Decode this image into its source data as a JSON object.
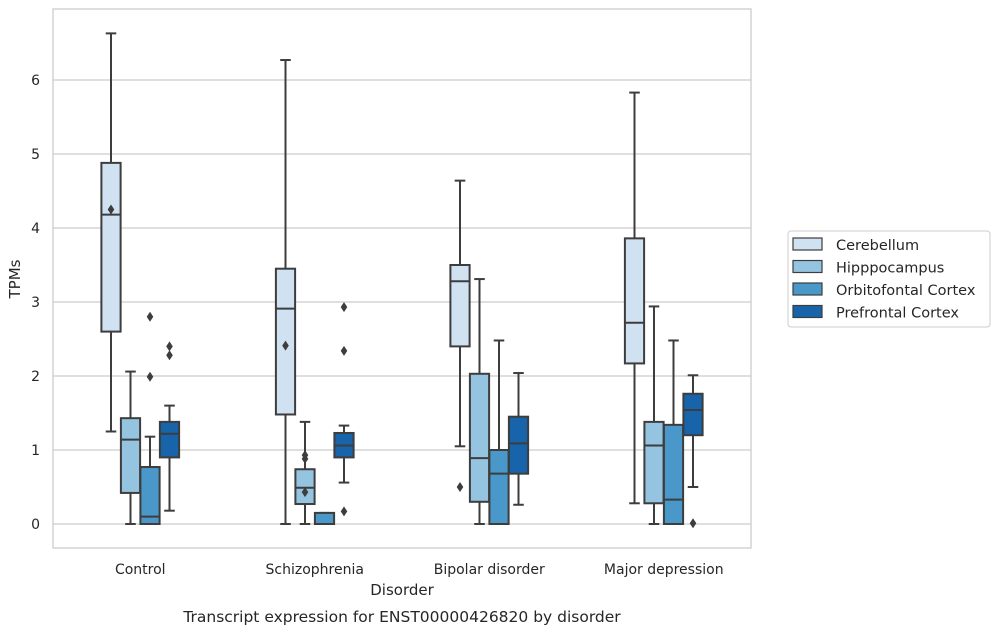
{
  "chart_data": {
    "type": "box",
    "xlabel": "Disorder",
    "ylabel": "TPMs",
    "caption": "Transcript expression for ENST00000426820 by disorder",
    "ylim": [
      -0.32,
      6.95
    ],
    "yticks": [
      "0",
      "1",
      "2",
      "3",
      "4",
      "5",
      "6"
    ],
    "grid": true,
    "legend_position": "right",
    "categories": [
      "Control",
      "Schizophrenia",
      "Bipolar disorder",
      "Major depression"
    ],
    "series": [
      {
        "name": "Cerebellum",
        "color": "#d0e1f2",
        "boxes": [
          {
            "whisker_low": 1.25,
            "q1": 2.6,
            "median": 4.18,
            "q3": 4.88,
            "whisker_high": 6.63,
            "outliers": [
              4.25
            ]
          },
          {
            "whisker_low": 0.0,
            "q1": 1.48,
            "median": 2.91,
            "q3": 3.45,
            "whisker_high": 6.27,
            "outliers": [
              2.41
            ]
          },
          {
            "whisker_low": 1.05,
            "q1": 2.4,
            "median": 3.28,
            "q3": 3.5,
            "whisker_high": 4.64,
            "outliers": [
              0.5
            ]
          },
          {
            "whisker_low": 0.28,
            "q1": 2.17,
            "median": 2.72,
            "q3": 3.86,
            "whisker_high": 5.83,
            "outliers": []
          }
        ]
      },
      {
        "name": "Hipppocampus",
        "color": "#94c4df",
        "boxes": [
          {
            "whisker_low": 0.0,
            "q1": 0.42,
            "median": 1.14,
            "q3": 1.43,
            "whisker_high": 2.06,
            "outliers": []
          },
          {
            "whisker_low": 0.0,
            "q1": 0.27,
            "median": 0.49,
            "q3": 0.74,
            "whisker_high": 1.38,
            "outliers": [
              0.43,
              0.88,
              0.93
            ]
          },
          {
            "whisker_low": 0.0,
            "q1": 0.3,
            "median": 0.89,
            "q3": 2.03,
            "whisker_high": 3.31,
            "outliers": []
          },
          {
            "whisker_low": 0.0,
            "q1": 0.28,
            "median": 1.06,
            "q3": 1.38,
            "whisker_high": 2.94,
            "outliers": []
          }
        ]
      },
      {
        "name": "Orbitofontal Cortex",
        "color": "#4a98c9",
        "boxes": [
          {
            "whisker_low": 0.0,
            "q1": 0.0,
            "median": 0.1,
            "q3": 0.77,
            "whisker_high": 1.18,
            "outliers": [
              1.99,
              2.8
            ]
          },
          {
            "whisker_low": 0.0,
            "q1": 0.0,
            "median": 0.0,
            "q3": 0.15,
            "whisker_high": 0.15,
            "outliers": []
          },
          {
            "whisker_low": 0.0,
            "q1": 0.0,
            "median": 0.68,
            "q3": 1.0,
            "whisker_high": 2.48,
            "outliers": []
          },
          {
            "whisker_low": 0.0,
            "q1": 0.0,
            "median": 0.33,
            "q3": 1.34,
            "whisker_high": 2.48,
            "outliers": []
          }
        ]
      },
      {
        "name": "Prefrontal Cortex",
        "color": "#1764ab",
        "boxes": [
          {
            "whisker_low": 0.18,
            "q1": 0.9,
            "median": 1.22,
            "q3": 1.38,
            "whisker_high": 1.6,
            "outliers": [
              2.28,
              2.4
            ]
          },
          {
            "whisker_low": 0.56,
            "q1": 0.9,
            "median": 1.06,
            "q3": 1.23,
            "whisker_high": 1.33,
            "outliers": [
              0.17,
              2.34,
              2.93
            ]
          },
          {
            "whisker_low": 0.26,
            "q1": 0.68,
            "median": 1.09,
            "q3": 1.45,
            "whisker_high": 2.04,
            "outliers": []
          },
          {
            "whisker_low": 0.5,
            "q1": 1.2,
            "median": 1.54,
            "q3": 1.76,
            "whisker_high": 2.01,
            "outliers": [
              0.01
            ]
          }
        ]
      }
    ]
  }
}
